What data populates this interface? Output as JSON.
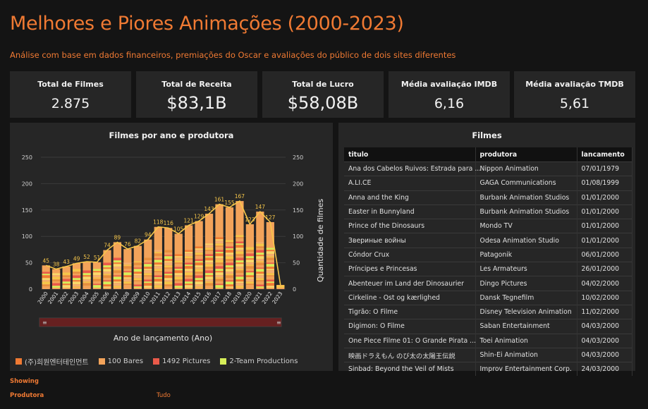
{
  "header": {
    "title": "Melhores e Piores Animações (2000-2023)",
    "subtitle": "Análise com base em dados financeiros, premiações do Oscar e avaliações do público de dois sites diferentes"
  },
  "kpis": [
    {
      "label": "Total de Filmes",
      "value": "2.875"
    },
    {
      "label": "Total de Receita",
      "value": "$83,1B"
    },
    {
      "label": "Total de Lucro",
      "value": "$58,08B"
    },
    {
      "label": "Média avaliação IMDB",
      "value": "6,16"
    },
    {
      "label": "Média avaliação TMDB",
      "value": "5,61"
    }
  ],
  "chart_panel": {
    "title": "Filmes por ano e produtora",
    "xlabel": "Ano de lançamento (Ano)",
    "ylabel_right": "Quantidade de filmes",
    "scroll_grip_left": "≡",
    "scroll_grip_right": "≡",
    "legend": [
      {
        "label": "(주)희원엔터테인먼트",
        "color": "#f07a33"
      },
      {
        "label": "100 Bares",
        "color": "#f3a35a"
      },
      {
        "label": "1492 Pictures",
        "color": "#ea5a4a"
      },
      {
        "label": "2-Team Productions",
        "color": "#d6ee58"
      }
    ]
  },
  "chart_data": {
    "type": "bar",
    "categories": [
      "2000",
      "2001",
      "2002",
      "2003",
      "2004",
      "2005",
      "2006",
      "2007",
      "2008",
      "2009",
      "2010",
      "2011",
      "2012",
      "2013",
      "2014",
      "2015",
      "2016",
      "2017",
      "2018",
      "2019",
      "2020",
      "2021",
      "2022",
      "2023"
    ],
    "values": [
      45,
      38,
      43,
      49,
      52,
      51,
      74,
      89,
      76,
      82,
      94,
      118,
      116,
      105,
      121,
      129,
      143,
      161,
      155,
      167,
      123,
      147,
      127,
      8
    ],
    "line_values": [
      45,
      38,
      43,
      49,
      52,
      51,
      74,
      89,
      76,
      82,
      94,
      118,
      116,
      105,
      121,
      129,
      143,
      161,
      155,
      167,
      123,
      147,
      127,
      8
    ],
    "ylim": [
      0,
      250
    ],
    "yticks": [
      0,
      50,
      100,
      150,
      200,
      250
    ],
    "colors": {
      "bar_main": "#f3a35a",
      "line": "#f6c64a",
      "label": "#f6c64a"
    }
  },
  "table_panel": {
    "title": "Filmes",
    "columns": [
      "titulo",
      "produtora",
      "lancamento"
    ],
    "rows": [
      [
        "Ana dos Cabelos Ruivos: Estrada para ...",
        "Nippon Animation",
        "07/01/1979"
      ],
      [
        "A.LI.CE",
        "GAGA Communications",
        "01/08/1999"
      ],
      [
        "Anna and the King",
        "Burbank Animation Studios",
        "01/01/2000"
      ],
      [
        "Easter in Bunnyland",
        "Burbank Animation Studios",
        "01/01/2000"
      ],
      [
        "Prince of the Dinosaurs",
        "Mondo TV",
        "01/01/2000"
      ],
      [
        "Звериные войны",
        "Odesa Animation Studio",
        "01/01/2000"
      ],
      [
        "Cóndor Crux",
        "Patagonik",
        "06/01/2000"
      ],
      [
        "Príncipes e Princesas",
        "Les Armateurs",
        "26/01/2000"
      ],
      [
        "Abenteuer im Land der Dinosaurier",
        "Dingo Pictures",
        "04/02/2000"
      ],
      [
        "Cirkeline - Ost og kærlighed",
        "Dansk Tegnefilm",
        "10/02/2000"
      ],
      [
        "Tigrão: O Filme",
        "Disney Television Animation",
        "11/02/2000"
      ],
      [
        "Digimon: O Filme",
        "Saban Entertainment",
        "04/03/2000"
      ],
      [
        "One Piece Filme 01: O Grande Pirata ...",
        "Toei Animation",
        "04/03/2000"
      ],
      [
        "映画ドラえもん のび太の太陽王伝説",
        "Shin-Ei Animation",
        "04/03/2000"
      ],
      [
        "Sinbad: Beyond the Veil of Mists",
        "Improv Entertainment Corp.",
        "24/03/2000"
      ]
    ]
  },
  "footer": {
    "showing_label": "Showing",
    "filter_label": "Produtora",
    "filter_value": "Tudo"
  }
}
